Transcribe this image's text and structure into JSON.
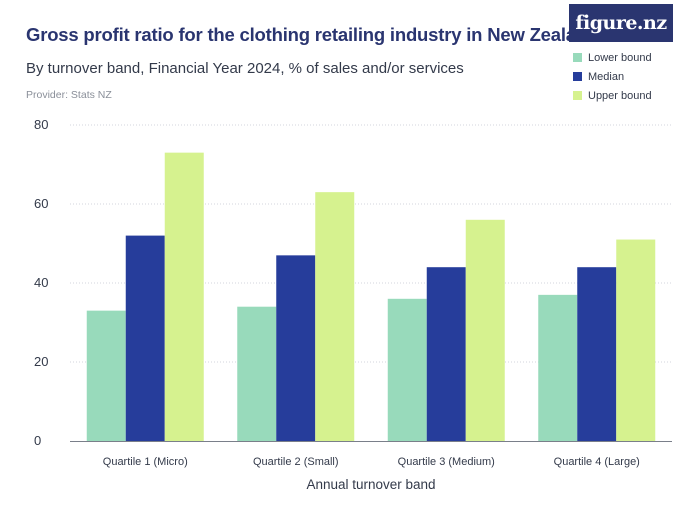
{
  "header": {
    "title": "Gross profit ratio for the clothing retailing industry in New Zealand",
    "subtitle": "By turnover band, Financial Year 2024, % of sales and/or services",
    "provider": "Provider: Stats NZ",
    "logo": "figure.nz"
  },
  "chart_data": {
    "type": "bar",
    "title": "Gross profit ratio for the clothing retailing industry in New Zealand",
    "subtitle": "By turnover band, Financial Year 2024, % of sales and/or services",
    "xlabel": "Annual turnover band",
    "ylabel": "",
    "ylim": [
      0,
      80
    ],
    "yticks": [
      0,
      20,
      40,
      60,
      80
    ],
    "grid": true,
    "legend_position": "top-right",
    "categories": [
      "Quartile 1 (Micro)",
      "Quartile 2 (Small)",
      "Quartile 3 (Medium)",
      "Quartile 4 (Large)"
    ],
    "series": [
      {
        "name": "Lower bound",
        "color": "#98dabb",
        "values": [
          33,
          34,
          36,
          37
        ]
      },
      {
        "name": "Median",
        "color": "#263d9b",
        "values": [
          52,
          47,
          44,
          44
        ]
      },
      {
        "name": "Upper bound",
        "color": "#d6f28f",
        "values": [
          73,
          63,
          56,
          51
        ]
      }
    ]
  }
}
